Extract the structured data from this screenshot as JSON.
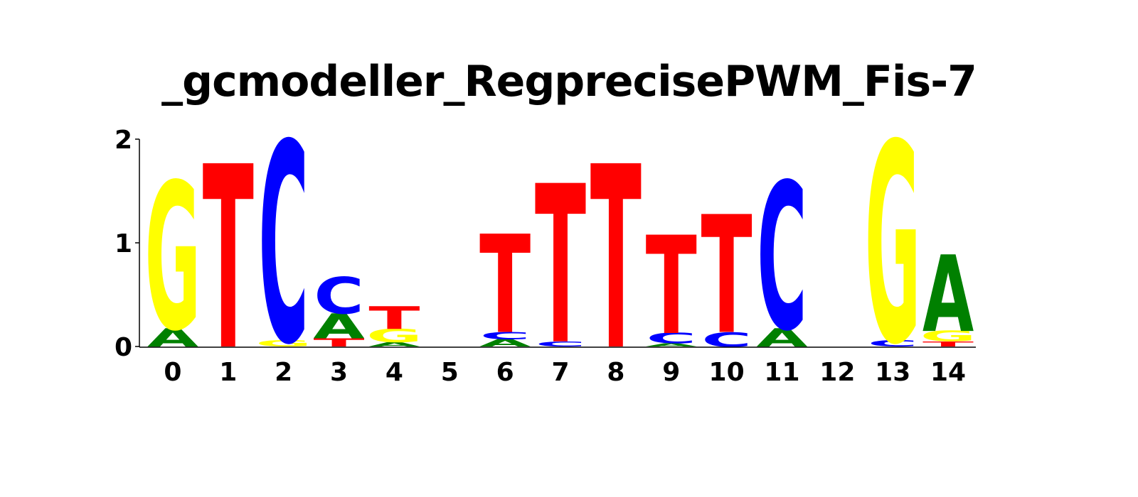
{
  "chart_data": {
    "type": "sequence-logo",
    "title": "_gcmodeller_RegprecisePWM_Fis-7",
    "xlabel": "",
    "ylabel": "",
    "ylim": [
      0,
      2
    ],
    "yticks": [
      "0",
      "1",
      "2"
    ],
    "categories": [
      "0",
      "1",
      "2",
      "3",
      "4",
      "5",
      "6",
      "7",
      "8",
      "9",
      "10",
      "11",
      "12",
      "13",
      "14"
    ],
    "colors": {
      "A": "#008000",
      "C": "#0000ff",
      "G": "#ffff00",
      "T": "#ff0000"
    },
    "positions": [
      {
        "pos": "0",
        "letters": [
          {
            "base": "A",
            "height": 0.18
          },
          {
            "base": "G",
            "height": 1.42
          }
        ]
      },
      {
        "pos": "1",
        "letters": [
          {
            "base": "T",
            "height": 1.77
          }
        ]
      },
      {
        "pos": "2",
        "letters": [
          {
            "base": "G",
            "height": 0.06
          },
          {
            "base": "C",
            "height": 1.93
          }
        ]
      },
      {
        "pos": "3",
        "letters": [
          {
            "base": "T",
            "height": 0.08
          },
          {
            "base": "A",
            "height": 0.24
          },
          {
            "base": "C",
            "height": 0.35
          }
        ]
      },
      {
        "pos": "4",
        "letters": [
          {
            "base": "A",
            "height": 0.04
          },
          {
            "base": "G",
            "height": 0.13
          },
          {
            "base": "T",
            "height": 0.22
          }
        ]
      },
      {
        "pos": "5",
        "letters": []
      },
      {
        "pos": "6",
        "letters": [
          {
            "base": "A",
            "height": 0.07
          },
          {
            "base": "C",
            "height": 0.07
          },
          {
            "base": "T",
            "height": 0.95
          }
        ]
      },
      {
        "pos": "7",
        "letters": [
          {
            "base": "C",
            "height": 0.05
          },
          {
            "base": "T",
            "height": 1.53
          }
        ]
      },
      {
        "pos": "8",
        "letters": [
          {
            "base": "T",
            "height": 1.77
          }
        ]
      },
      {
        "pos": "9",
        "letters": [
          {
            "base": "A",
            "height": 0.03
          },
          {
            "base": "C",
            "height": 0.1
          },
          {
            "base": "T",
            "height": 0.95
          }
        ]
      },
      {
        "pos": "10",
        "letters": [
          {
            "base": "C",
            "height": 0.14
          },
          {
            "base": "T",
            "height": 1.14
          }
        ]
      },
      {
        "pos": "11",
        "letters": [
          {
            "base": "A",
            "height": 0.18
          },
          {
            "base": "C",
            "height": 1.42
          }
        ]
      },
      {
        "pos": "12",
        "letters": []
      },
      {
        "pos": "13",
        "letters": [
          {
            "base": "C",
            "height": 0.06
          },
          {
            "base": "G",
            "height": 1.93
          }
        ]
      },
      {
        "pos": "14",
        "letters": [
          {
            "base": "T",
            "height": 0.05
          },
          {
            "base": "G",
            "height": 0.1
          },
          {
            "base": "A",
            "height": 0.74
          }
        ]
      }
    ]
  }
}
